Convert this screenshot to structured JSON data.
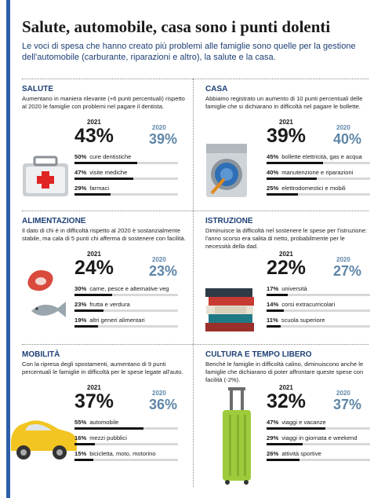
{
  "header": {
    "title": "Salute, automobile, casa sono i punti dolenti",
    "subtitle": "Le voci di spesa che hanno creato più problemi alle famiglie sono quelle per la gestione dell'automobile (carburante, riparazioni e altro), la salute e la casa."
  },
  "panels": [
    {
      "heading": "SALUTE",
      "description": "Aumentano in maniera rilevante (+6 punti percentuali) rispetto al 2020 le famiglie con problemi nel pagare il dentista.",
      "current": {
        "year": "2021",
        "pct": "43%"
      },
      "previous": {
        "year": "2020",
        "pct": "39%"
      },
      "values": [
        50,
        47,
        29
      ],
      "value_labels": [
        "50%",
        "47%",
        "29%"
      ],
      "items": [
        "cure dentistiche",
        "visite mediche",
        "farmaci"
      ]
    },
    {
      "heading": "CASA",
      "description": "Abbiamo registrato un aumento di 10 punti percentuali delle famiglie che si dichiarano in difficoltà nel pagare le bollette.",
      "current": {
        "year": "2021",
        "pct": "39%"
      },
      "previous": {
        "year": "2020",
        "pct": "40%"
      },
      "values": [
        45,
        40,
        25
      ],
      "value_labels": [
        "45%",
        "40%",
        "25%"
      ],
      "items": [
        "bollette elettricità, gas e acqua",
        "manutenzione e riparazioni",
        "elettrodomestici e mobili"
      ]
    },
    {
      "heading": "ALIMENTAZIONE",
      "description": "Il dato di chi è in difficoltà rispetto al 2020 è sostanzialmente stabile, ma cala di 5 punti chi afferma di sostenere con facilità.",
      "current": {
        "year": "2021",
        "pct": "24%"
      },
      "previous": {
        "year": "2020",
        "pct": "23%"
      },
      "values": [
        30,
        23,
        19
      ],
      "value_labels": [
        "30%",
        "23%",
        "19%"
      ],
      "items": [
        "carne, pesce e alternative veg",
        "frutta e verdura",
        "altri generi alimentari"
      ]
    },
    {
      "heading": "ISTRUZIONE",
      "description": "Diminuisce la difficoltà nel sostenere le spese per l'istruzione: l'anno scorso era salita di netto, probabilmente per le necessità della dad.",
      "current": {
        "year": "2021",
        "pct": "22%"
      },
      "previous": {
        "year": "2020",
        "pct": "27%"
      },
      "values": [
        17,
        14,
        11
      ],
      "value_labels": [
        "17%",
        "14%",
        "11%"
      ],
      "items": [
        "università",
        "corsi extracurricolari",
        "scuola superiore"
      ]
    },
    {
      "heading": "MOBILITÀ",
      "description": "Con la ripresa degli spostamenti, aumentano di 9 punti percentuali le famiglie in difficoltà per le spese legate all'auto.",
      "current": {
        "year": "2021",
        "pct": "37%"
      },
      "previous": {
        "year": "2020",
        "pct": "36%"
      },
      "values": [
        55,
        16,
        15
      ],
      "value_labels": [
        "55%",
        "16%",
        "15%"
      ],
      "items": [
        "automobile",
        "mezzi pubblici",
        "bicicletta, moto, motorino"
      ]
    },
    {
      "heading": "CULTURA E TEMPO LIBERO",
      "description": "Benché le famiglie in difficoltà calino, diminuiscono anche le famiglie che dichiarano di poter affrontare queste spese con facilità (-2%).",
      "current": {
        "year": "2021",
        "pct": "32%"
      },
      "previous": {
        "year": "2020",
        "pct": "37%"
      },
      "values": [
        47,
        29,
        26
      ],
      "value_labels": [
        "47%",
        "29%",
        "26%"
      ],
      "items": [
        "viaggi e vacanze",
        "viaggi in giornata e weekend",
        "attività sportive"
      ]
    }
  ]
}
